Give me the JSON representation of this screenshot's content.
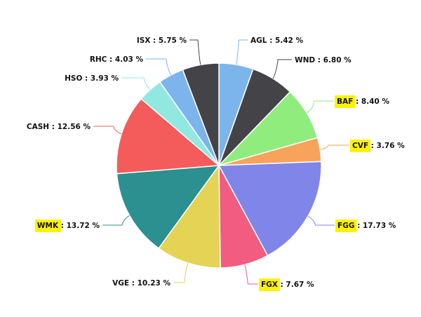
{
  "chart_data": {
    "type": "pie",
    "title": "",
    "label_format": "{name} : {value} %",
    "slices": [
      {
        "name": "AGL",
        "value": 5.42,
        "display": "5.42",
        "color": "#7cb5ec",
        "highlight": false
      },
      {
        "name": "WND",
        "value": 6.8,
        "display": "6.80",
        "color": "#434348",
        "highlight": false
      },
      {
        "name": "BAF",
        "value": 8.4,
        "display": "8.40",
        "color": "#90ed7d",
        "highlight": true
      },
      {
        "name": "CVF",
        "value": 3.76,
        "display": "3.76",
        "color": "#f7a35c",
        "highlight": true
      },
      {
        "name": "FGG",
        "value": 17.73,
        "display": "17.73",
        "color": "#8085e9",
        "highlight": true
      },
      {
        "name": "FGX",
        "value": 7.67,
        "display": "7.67",
        "color": "#f15c80",
        "highlight": true
      },
      {
        "name": "VGE",
        "value": 10.23,
        "display": "10.23",
        "color": "#e4d354",
        "highlight": false
      },
      {
        "name": "WMK",
        "value": 13.72,
        "display": "13.72",
        "color": "#2b908f",
        "highlight": true
      },
      {
        "name": "CASH",
        "value": 12.56,
        "display": "12.56",
        "color": "#f45b5b",
        "highlight": false
      },
      {
        "name": "HSO",
        "value": 3.93,
        "display": "3.93",
        "color": "#91e8e1",
        "highlight": false
      },
      {
        "name": "RHC",
        "value": 4.03,
        "display": "4.03",
        "color": "#7cb5ec",
        "highlight": false
      },
      {
        "name": "ISX",
        "value": 5.75,
        "display": "5.75",
        "color": "#434348",
        "highlight": false
      }
    ],
    "highlight_color": "#fff200"
  }
}
